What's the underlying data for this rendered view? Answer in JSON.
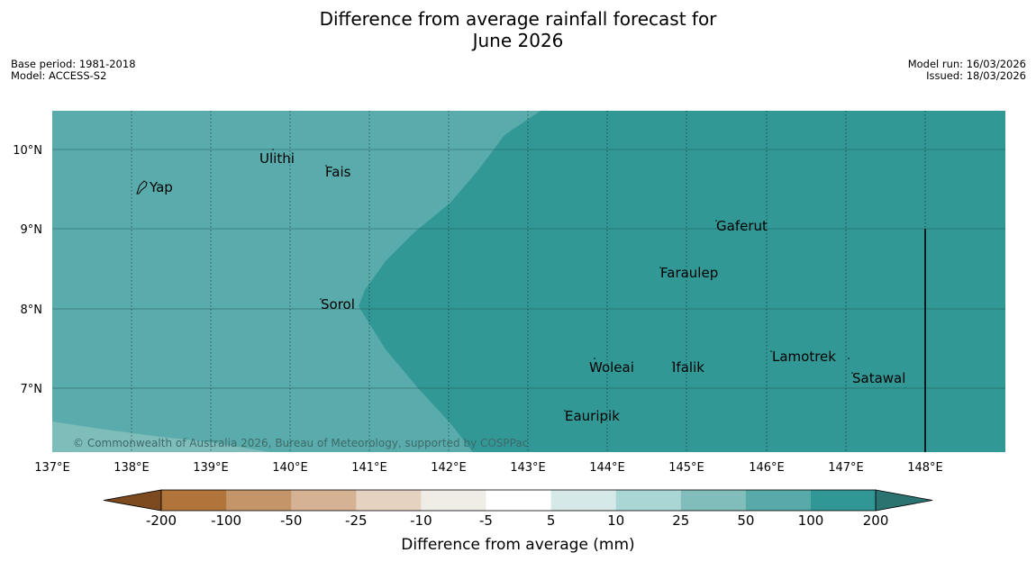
{
  "header": {
    "title_line1": "Difference from average rainfall forecast for",
    "title_line2": "June 2026",
    "base_period": "Base period: 1981-2018",
    "model": "Model: ACCESS-S2",
    "model_run": "Model run: 16/03/2026",
    "issued": "Issued: 18/03/2026"
  },
  "map": {
    "lat_labels": [
      "10°N",
      "9°N",
      "8°N",
      "7°N"
    ],
    "lon_labels": [
      "137°E",
      "138°E",
      "139°E",
      "140°E",
      "141°E",
      "142°E",
      "143°E",
      "144°E",
      "145°E",
      "146°E",
      "147°E",
      "148°E"
    ],
    "places": [
      "Yap",
      "Ulithi",
      "Fais",
      "Gaferut",
      "Faraulep",
      "Sorol",
      "Lamotrek",
      "Woleai",
      "Ifalik",
      "Satawal",
      "Eauripik"
    ],
    "copyright": "© Commonwealth of Australia 2026, Bureau of Meteorology, supported by COSPPac",
    "colors": {
      "cat_200_plus": "#319896",
      "cat_100_200": "#5aabab",
      "cat_50_100": "#7fbdbb"
    }
  },
  "colorbar": {
    "labels": [
      "-200",
      "-100",
      "-50",
      "-25",
      "-10",
      "-5",
      "5",
      "10",
      "25",
      "50",
      "100",
      "200"
    ],
    "colors": [
      "#7c4a1e",
      "#b1743b",
      "#c39569",
      "#d5b293",
      "#e5d2c1",
      "#f0ece6",
      "#ffffff",
      "#d5e9e8",
      "#aad6d5",
      "#80bdbb",
      "#58aaa9",
      "#319796",
      "#2a7370"
    ],
    "title": "Difference from average (mm)"
  }
}
